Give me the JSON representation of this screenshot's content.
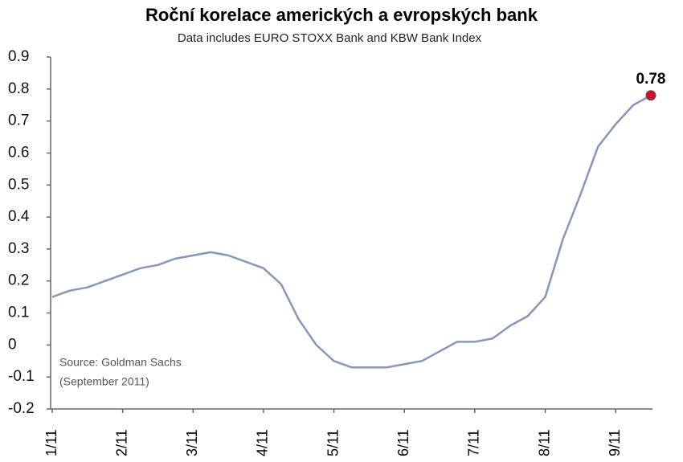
{
  "chart_data": {
    "type": "line",
    "title": "Roční korelace amerických a evropských bank",
    "subtitle": "Data includes EURO STOXX Bank and KBW Bank Index",
    "annotation": [
      "Source: Goldman Sachs",
      "(September 2011)"
    ],
    "categories": [
      "1/11",
      null,
      null,
      null,
      "2/11",
      null,
      null,
      null,
      "3/11",
      null,
      null,
      null,
      "4/11",
      null,
      null,
      null,
      "5/11",
      null,
      null,
      null,
      "6/11",
      null,
      null,
      null,
      "7/11",
      null,
      null,
      null,
      "8/11",
      null,
      null,
      null,
      "9/11",
      null,
      null
    ],
    "series": [
      {
        "color": "#8797b8",
        "values": [
          0.15,
          0.17,
          0.18,
          0.2,
          0.22,
          0.24,
          0.25,
          0.27,
          0.28,
          0.29,
          0.28,
          0.26,
          0.24,
          0.19,
          0.08,
          0.0,
          -0.05,
          -0.07,
          -0.07,
          -0.07,
          -0.06,
          -0.05,
          -0.02,
          0.01,
          0.01,
          0.02,
          0.06,
          0.09,
          0.15,
          0.33,
          0.47,
          0.62,
          0.69,
          0.75,
          0.78
        ]
      }
    ],
    "highlight_color": "#d0102a",
    "ylim": [
      -0.2,
      0.9
    ],
    "yticks": [
      -0.2,
      -0.1,
      0,
      0.1,
      0.2,
      0.3,
      0.4,
      0.5,
      0.6,
      0.7,
      0.8,
      0.9
    ]
  }
}
